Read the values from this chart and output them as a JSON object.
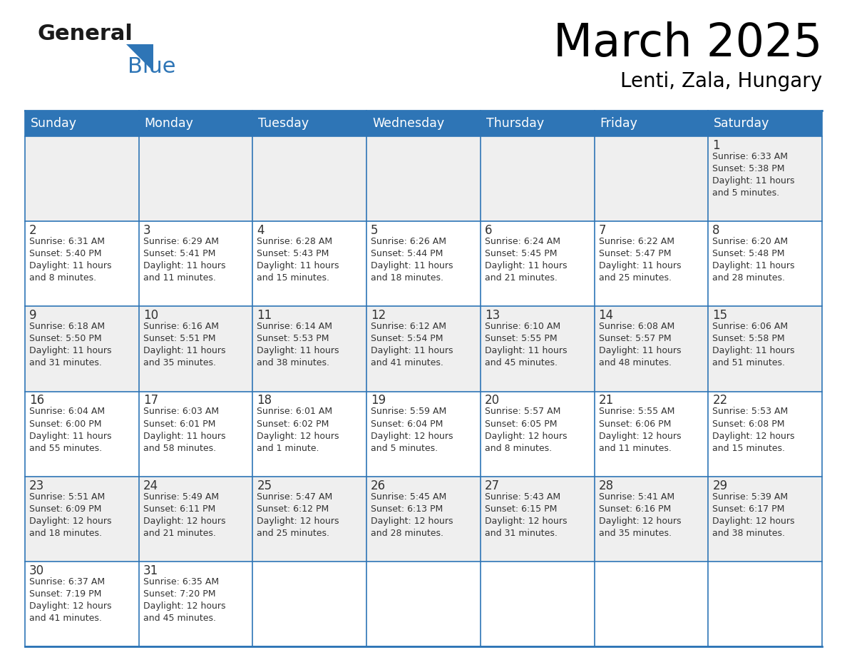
{
  "title": "March 2025",
  "subtitle": "Lenti, Zala, Hungary",
  "header_bg": "#2E75B6",
  "header_text": "#FFFFFF",
  "cell_bg_odd": "#EFEFEF",
  "cell_bg_even": "#FFFFFF",
  "border_color": "#2E75B6",
  "text_color": "#333333",
  "days_of_week": [
    "Sunday",
    "Monday",
    "Tuesday",
    "Wednesday",
    "Thursday",
    "Friday",
    "Saturday"
  ],
  "weeks": [
    [
      {
        "day": "",
        "lines": []
      },
      {
        "day": "",
        "lines": []
      },
      {
        "day": "",
        "lines": []
      },
      {
        "day": "",
        "lines": []
      },
      {
        "day": "",
        "lines": []
      },
      {
        "day": "",
        "lines": []
      },
      {
        "day": "1",
        "lines": [
          "Sunrise: 6:33 AM",
          "Sunset: 5:38 PM",
          "Daylight: 11 hours",
          "and 5 minutes."
        ]
      }
    ],
    [
      {
        "day": "2",
        "lines": [
          "Sunrise: 6:31 AM",
          "Sunset: 5:40 PM",
          "Daylight: 11 hours",
          "and 8 minutes."
        ]
      },
      {
        "day": "3",
        "lines": [
          "Sunrise: 6:29 AM",
          "Sunset: 5:41 PM",
          "Daylight: 11 hours",
          "and 11 minutes."
        ]
      },
      {
        "day": "4",
        "lines": [
          "Sunrise: 6:28 AM",
          "Sunset: 5:43 PM",
          "Daylight: 11 hours",
          "and 15 minutes."
        ]
      },
      {
        "day": "5",
        "lines": [
          "Sunrise: 6:26 AM",
          "Sunset: 5:44 PM",
          "Daylight: 11 hours",
          "and 18 minutes."
        ]
      },
      {
        "day": "6",
        "lines": [
          "Sunrise: 6:24 AM",
          "Sunset: 5:45 PM",
          "Daylight: 11 hours",
          "and 21 minutes."
        ]
      },
      {
        "day": "7",
        "lines": [
          "Sunrise: 6:22 AM",
          "Sunset: 5:47 PM",
          "Daylight: 11 hours",
          "and 25 minutes."
        ]
      },
      {
        "day": "8",
        "lines": [
          "Sunrise: 6:20 AM",
          "Sunset: 5:48 PM",
          "Daylight: 11 hours",
          "and 28 minutes."
        ]
      }
    ],
    [
      {
        "day": "9",
        "lines": [
          "Sunrise: 6:18 AM",
          "Sunset: 5:50 PM",
          "Daylight: 11 hours",
          "and 31 minutes."
        ]
      },
      {
        "day": "10",
        "lines": [
          "Sunrise: 6:16 AM",
          "Sunset: 5:51 PM",
          "Daylight: 11 hours",
          "and 35 minutes."
        ]
      },
      {
        "day": "11",
        "lines": [
          "Sunrise: 6:14 AM",
          "Sunset: 5:53 PM",
          "Daylight: 11 hours",
          "and 38 minutes."
        ]
      },
      {
        "day": "12",
        "lines": [
          "Sunrise: 6:12 AM",
          "Sunset: 5:54 PM",
          "Daylight: 11 hours",
          "and 41 minutes."
        ]
      },
      {
        "day": "13",
        "lines": [
          "Sunrise: 6:10 AM",
          "Sunset: 5:55 PM",
          "Daylight: 11 hours",
          "and 45 minutes."
        ]
      },
      {
        "day": "14",
        "lines": [
          "Sunrise: 6:08 AM",
          "Sunset: 5:57 PM",
          "Daylight: 11 hours",
          "and 48 minutes."
        ]
      },
      {
        "day": "15",
        "lines": [
          "Sunrise: 6:06 AM",
          "Sunset: 5:58 PM",
          "Daylight: 11 hours",
          "and 51 minutes."
        ]
      }
    ],
    [
      {
        "day": "16",
        "lines": [
          "Sunrise: 6:04 AM",
          "Sunset: 6:00 PM",
          "Daylight: 11 hours",
          "and 55 minutes."
        ]
      },
      {
        "day": "17",
        "lines": [
          "Sunrise: 6:03 AM",
          "Sunset: 6:01 PM",
          "Daylight: 11 hours",
          "and 58 minutes."
        ]
      },
      {
        "day": "18",
        "lines": [
          "Sunrise: 6:01 AM",
          "Sunset: 6:02 PM",
          "Daylight: 12 hours",
          "and 1 minute."
        ]
      },
      {
        "day": "19",
        "lines": [
          "Sunrise: 5:59 AM",
          "Sunset: 6:04 PM",
          "Daylight: 12 hours",
          "and 5 minutes."
        ]
      },
      {
        "day": "20",
        "lines": [
          "Sunrise: 5:57 AM",
          "Sunset: 6:05 PM",
          "Daylight: 12 hours",
          "and 8 minutes."
        ]
      },
      {
        "day": "21",
        "lines": [
          "Sunrise: 5:55 AM",
          "Sunset: 6:06 PM",
          "Daylight: 12 hours",
          "and 11 minutes."
        ]
      },
      {
        "day": "22",
        "lines": [
          "Sunrise: 5:53 AM",
          "Sunset: 6:08 PM",
          "Daylight: 12 hours",
          "and 15 minutes."
        ]
      }
    ],
    [
      {
        "day": "23",
        "lines": [
          "Sunrise: 5:51 AM",
          "Sunset: 6:09 PM",
          "Daylight: 12 hours",
          "and 18 minutes."
        ]
      },
      {
        "day": "24",
        "lines": [
          "Sunrise: 5:49 AM",
          "Sunset: 6:11 PM",
          "Daylight: 12 hours",
          "and 21 minutes."
        ]
      },
      {
        "day": "25",
        "lines": [
          "Sunrise: 5:47 AM",
          "Sunset: 6:12 PM",
          "Daylight: 12 hours",
          "and 25 minutes."
        ]
      },
      {
        "day": "26",
        "lines": [
          "Sunrise: 5:45 AM",
          "Sunset: 6:13 PM",
          "Daylight: 12 hours",
          "and 28 minutes."
        ]
      },
      {
        "day": "27",
        "lines": [
          "Sunrise: 5:43 AM",
          "Sunset: 6:15 PM",
          "Daylight: 12 hours",
          "and 31 minutes."
        ]
      },
      {
        "day": "28",
        "lines": [
          "Sunrise: 5:41 AM",
          "Sunset: 6:16 PM",
          "Daylight: 12 hours",
          "and 35 minutes."
        ]
      },
      {
        "day": "29",
        "lines": [
          "Sunrise: 5:39 AM",
          "Sunset: 6:17 PM",
          "Daylight: 12 hours",
          "and 38 minutes."
        ]
      }
    ],
    [
      {
        "day": "30",
        "lines": [
          "Sunrise: 6:37 AM",
          "Sunset: 7:19 PM",
          "Daylight: 12 hours",
          "and 41 minutes."
        ]
      },
      {
        "day": "31",
        "lines": [
          "Sunrise: 6:35 AM",
          "Sunset: 7:20 PM",
          "Daylight: 12 hours",
          "and 45 minutes."
        ]
      },
      {
        "day": "",
        "lines": []
      },
      {
        "day": "",
        "lines": []
      },
      {
        "day": "",
        "lines": []
      },
      {
        "day": "",
        "lines": []
      },
      {
        "day": "",
        "lines": []
      }
    ]
  ],
  "logo_general_color": "#1a1a1a",
  "logo_blue_color": "#2E75B6",
  "logo_triangle_color": "#2E75B6"
}
